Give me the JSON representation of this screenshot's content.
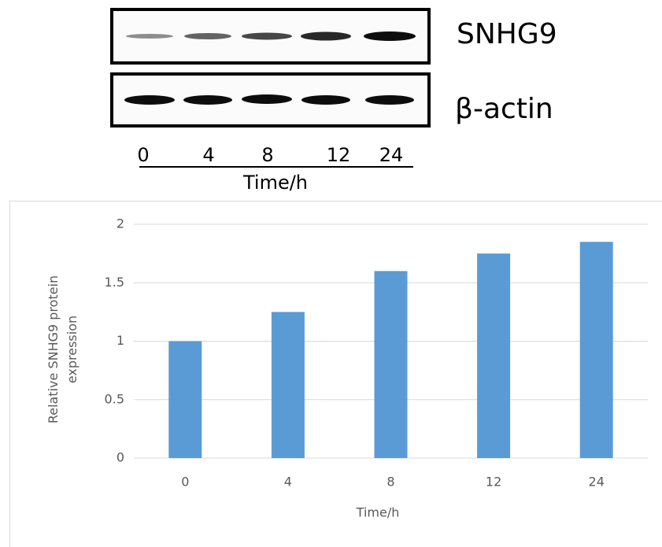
{
  "blot": {
    "rows": [
      "SNHG9",
      "β-actin"
    ],
    "lanes": [
      "0",
      "4",
      "8",
      "12",
      "24"
    ],
    "x_label": "Time/h"
  },
  "chart_data": {
    "type": "bar",
    "categories": [
      "0",
      "4",
      "8",
      "12",
      "24"
    ],
    "values": [
      1,
      1.25,
      1.6,
      1.75,
      1.85
    ],
    "color": "#5b9bd5",
    "x_label": "Time/h",
    "y_label": "Relative SNHG9 protein expression",
    "ylim": [
      0,
      2
    ],
    "yticks": [
      0,
      0.5,
      1,
      1.5,
      2
    ],
    "grid": true
  }
}
